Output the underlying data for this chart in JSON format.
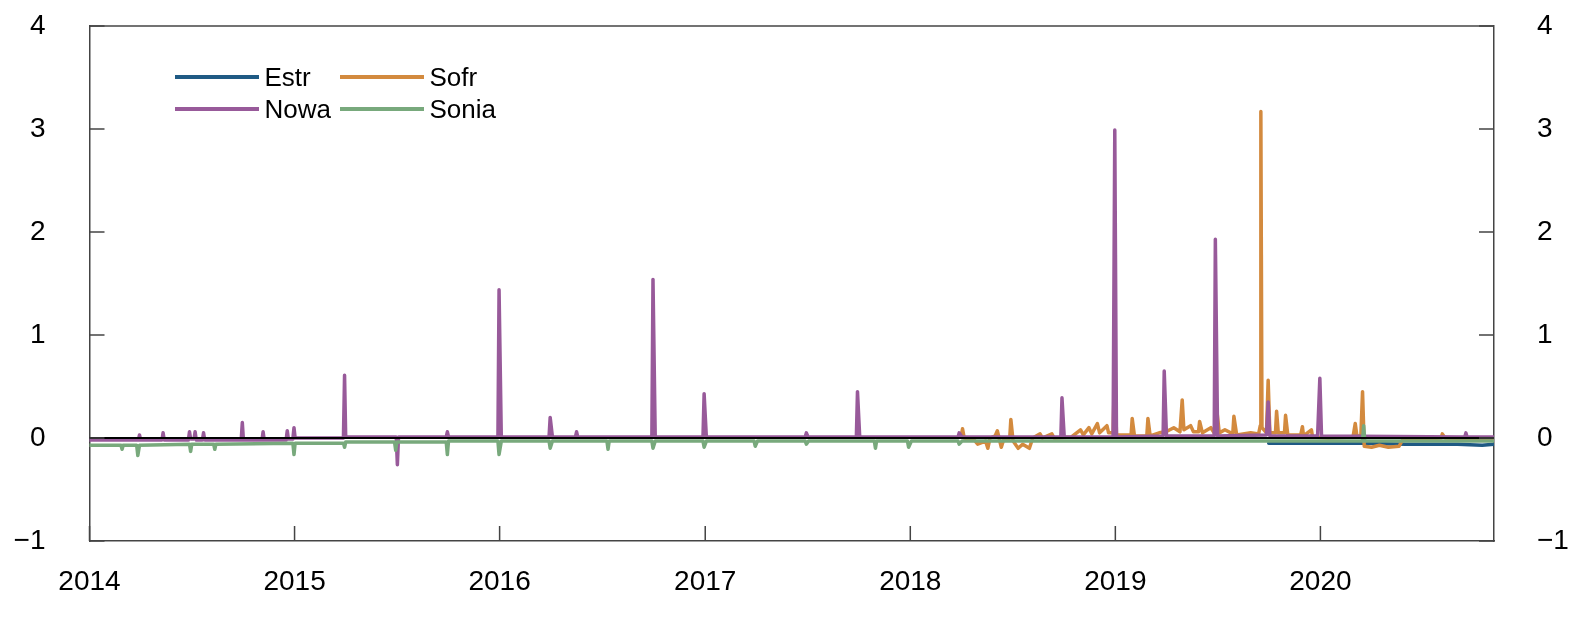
{
  "chart_data": {
    "type": "line",
    "xlim": [
      "2014",
      "2020-11-05"
    ],
    "xticks": [
      "2014",
      "2015",
      "2016",
      "2017",
      "2018",
      "2019",
      "2020"
    ],
    "ylim": [
      -1,
      4
    ],
    "yticks": [
      {
        "value": -1,
        "label": "−1"
      },
      0,
      1,
      2,
      3,
      4
    ],
    "y2lim": [
      -1,
      4
    ],
    "y2ticks": [
      {
        "value": -1,
        "label": "−1"
      },
      0,
      1,
      2,
      3,
      4
    ],
    "legend": "top left",
    "ref_lines": [
      {
        "axis": "y",
        "value": 0,
        "color": "#000000"
      }
    ],
    "series": [
      {
        "name": "Estr",
        "color": "#1f5a84",
        "x": [
          "2019-10-01",
          "2019-12-31",
          "2020-03-18",
          "2020-06-01",
          "2020-09-01",
          "2020-10-15",
          "2020-11-05"
        ],
        "values": [
          -0.05,
          -0.05,
          -0.05,
          -0.06,
          -0.06,
          -0.07,
          -0.06
        ]
      },
      {
        "name": "Sofr",
        "color": "#d38a3e",
        "x": [
          "2018-04-02",
          "2018-04-04",
          "2018-04-07",
          "2018-04-25",
          "2018-05-01",
          "2018-05-15",
          "2018-05-19",
          "2018-05-23",
          "2018-06-01",
          "2018-06-05",
          "2018-06-08",
          "2018-06-12",
          "2018-06-16",
          "2018-06-27",
          "2018-06-29",
          "2018-07-03",
          "2018-07-12",
          "2018-07-20",
          "2018-08-01",
          "2018-08-07",
          "2018-08-20",
          "2018-08-24",
          "2018-09-10",
          "2018-09-14",
          "2018-10-15",
          "2018-10-31",
          "2018-11-05",
          "2018-11-15",
          "2018-11-20",
          "2018-11-30",
          "2018-12-04",
          "2018-12-17",
          "2018-12-20",
          "2018-12-28",
          "2018-12-31",
          "2019-01-03",
          "2019-01-29",
          "2019-01-31",
          "2019-02-04",
          "2019-02-26",
          "2019-02-28",
          "2019-03-04",
          "2019-03-20",
          "2019-04-01",
          "2019-04-15",
          "2019-04-26",
          "2019-04-30",
          "2019-05-03",
          "2019-05-15",
          "2019-05-20",
          "2019-05-29",
          "2019-05-31",
          "2019-06-05",
          "2019-06-20",
          "2019-06-27",
          "2019-07-01",
          "2019-07-05",
          "2019-07-15",
          "2019-07-29",
          "2019-07-31",
          "2019-08-05",
          "2019-08-30",
          "2019-09-13",
          "2019-09-16",
          "2019-09-17",
          "2019-09-19",
          "2019-09-27",
          "2019-09-30",
          "2019-10-03",
          "2019-10-13",
          "2019-10-15",
          "2019-10-18",
          "2019-10-29",
          "2019-10-31",
          "2019-11-04",
          "2019-11-27",
          "2019-11-30",
          "2019-12-02",
          "2019-12-16",
          "2019-12-18",
          "2020-01-15",
          "2020-02-28",
          "2020-03-03",
          "2020-03-06",
          "2020-03-13",
          "2020-03-16",
          "2020-03-19",
          "2020-04-01",
          "2020-04-15",
          "2020-05-01",
          "2020-05-20",
          "2020-05-26",
          "2020-07-01",
          "2020-08-03",
          "2020-08-05",
          "2020-08-10",
          "2020-11-05"
        ],
        "values": [
          0.03,
          0.09,
          0.0,
          -0.02,
          -0.06,
          -0.03,
          -0.1,
          0.0,
          0.02,
          0.07,
          0.0,
          -0.09,
          -0.02,
          0.0,
          0.18,
          -0.03,
          -0.1,
          -0.06,
          -0.1,
          0.0,
          0.04,
          0.0,
          0.04,
          0.0,
          0.01,
          0.08,
          0.03,
          0.1,
          0.04,
          0.14,
          0.05,
          0.12,
          0.05,
          0.05,
          0.76,
          0.03,
          0.03,
          0.19,
          0.02,
          0.02,
          0.19,
          0.02,
          0.05,
          0.06,
          0.1,
          0.06,
          0.37,
          0.08,
          0.12,
          0.06,
          0.06,
          0.16,
          0.05,
          0.1,
          0.04,
          0.25,
          0.05,
          0.08,
          0.04,
          0.21,
          0.03,
          0.05,
          0.04,
          0.12,
          3.17,
          0.1,
          0.05,
          0.56,
          0.05,
          0.05,
          0.26,
          0.05,
          0.05,
          0.22,
          0.03,
          0.03,
          0.11,
          0.02,
          0.08,
          0.01,
          0.0,
          0.01,
          0.14,
          0.02,
          0.02,
          0.45,
          -0.08,
          -0.09,
          -0.07,
          -0.09,
          -0.08,
          -0.02,
          -0.01,
          0.0,
          0.04,
          0.0,
          -0.01
        ]
      },
      {
        "name": "Nowa",
        "color": "#985a9a",
        "x": [
          "2014-01-01",
          "2014-03-29",
          "2014-03-31",
          "2014-04-02",
          "2014-05-10",
          "2014-05-12",
          "2014-05-14",
          "2014-06-26",
          "2014-06-28",
          "2014-06-30",
          "2014-07-06",
          "2014-07-08",
          "2014-07-10",
          "2014-07-21",
          "2014-07-23",
          "2014-07-25",
          "2014-09-28",
          "2014-09-30",
          "2014-10-02",
          "2014-11-04",
          "2014-11-06",
          "2014-11-08",
          "2014-12-17",
          "2014-12-19",
          "2014-12-21",
          "2014-12-29",
          "2014-12-31",
          "2015-01-02",
          "2015-03-29",
          "2015-03-31",
          "2015-04-02",
          "2015-07-01",
          "2015-07-03",
          "2015-07-05",
          "2015-09-28",
          "2015-09-30",
          "2015-10-02",
          "2015-12-29",
          "2015-12-31",
          "2016-01-04",
          "2016-03-29",
          "2016-03-31",
          "2016-04-04",
          "2016-05-15",
          "2016-05-17",
          "2016-05-19",
          "2016-09-28",
          "2016-09-30",
          "2016-10-04",
          "2016-12-28",
          "2016-12-30",
          "2017-01-03",
          "2017-06-28",
          "2017-06-30",
          "2017-07-03",
          "2017-09-27",
          "2017-09-29",
          "2017-10-03",
          "2018-03-27",
          "2018-03-29",
          "2018-04-03",
          "2018-09-26",
          "2018-09-28",
          "2018-10-02",
          "2018-12-28",
          "2018-12-31",
          "2019-01-03",
          "2019-03-27",
          "2019-03-29",
          "2019-04-02",
          "2019-06-26",
          "2019-06-28",
          "2019-07-02",
          "2019-09-27",
          "2019-09-30",
          "2019-10-03",
          "2019-12-27",
          "2019-12-31",
          "2020-01-03",
          "2020-09-14",
          "2020-09-16",
          "2020-09-18",
          "2020-11-05"
        ],
        "values": [
          -0.02,
          -0.02,
          0.03,
          -0.02,
          -0.02,
          0.05,
          -0.02,
          -0.02,
          0.06,
          -0.01,
          -0.01,
          0.06,
          -0.02,
          -0.02,
          0.05,
          -0.02,
          -0.02,
          0.15,
          -0.02,
          -0.02,
          0.06,
          -0.02,
          -0.02,
          0.07,
          -0.01,
          -0.01,
          0.1,
          0.0,
          0.0,
          0.61,
          0.01,
          0.01,
          -0.26,
          0.01,
          0.01,
          0.06,
          0.01,
          0.01,
          1.44,
          0.01,
          0.01,
          0.2,
          0.01,
          0.01,
          0.06,
          0.01,
          0.01,
          1.54,
          0.01,
          0.01,
          0.43,
          0.01,
          0.01,
          0.05,
          0.01,
          0.01,
          0.45,
          0.01,
          0.01,
          0.05,
          0.01,
          0.01,
          0.39,
          0.01,
          0.01,
          2.99,
          0.01,
          0.02,
          0.65,
          0.02,
          0.02,
          1.93,
          0.02,
          0.03,
          0.35,
          0.02,
          0.02,
          0.58,
          0.02,
          0.01,
          0.05,
          0.01,
          0.01
        ]
      },
      {
        "name": "Sonia",
        "color": "#78a97c",
        "x": [
          "2014-01-01",
          "2014-02-26",
          "2014-02-28",
          "2014-03-02",
          "2014-03-26",
          "2014-03-28",
          "2014-03-31",
          "2014-06-28",
          "2014-06-30",
          "2014-07-02",
          "2014-08-10",
          "2014-08-12",
          "2014-08-14",
          "2014-12-29",
          "2014-12-31",
          "2015-01-02",
          "2015-03-29",
          "2015-03-31",
          "2015-04-02",
          "2015-06-28",
          "2015-06-30",
          "2015-07-02",
          "2015-09-28",
          "2015-09-30",
          "2015-10-02",
          "2015-12-29",
          "2015-12-31",
          "2016-01-04",
          "2016-03-29",
          "2016-03-31",
          "2016-04-04",
          "2016-07-10",
          "2016-07-12",
          "2016-07-14",
          "2016-09-28",
          "2016-09-30",
          "2016-10-04",
          "2016-12-28",
          "2016-12-30",
          "2017-01-03",
          "2017-03-29",
          "2017-03-31",
          "2017-04-04",
          "2017-06-28",
          "2017-06-30",
          "2017-07-04",
          "2017-10-29",
          "2017-10-31",
          "2017-11-02",
          "2017-12-27",
          "2017-12-29",
          "2018-01-03",
          "2018-03-27",
          "2018-03-29",
          "2018-04-03",
          "2020-03-16",
          "2020-03-18",
          "2020-03-20",
          "2020-11-05"
        ],
        "values": [
          -0.07,
          -0.07,
          -0.11,
          -0.07,
          -0.07,
          -0.17,
          -0.07,
          -0.06,
          -0.13,
          -0.06,
          -0.06,
          -0.11,
          -0.06,
          -0.05,
          -0.16,
          -0.05,
          -0.05,
          -0.09,
          -0.04,
          -0.04,
          -0.12,
          -0.04,
          -0.04,
          -0.16,
          -0.03,
          -0.03,
          -0.16,
          -0.03,
          -0.03,
          -0.1,
          -0.03,
          -0.03,
          -0.11,
          -0.03,
          -0.03,
          -0.1,
          -0.03,
          -0.03,
          -0.09,
          -0.03,
          -0.03,
          -0.08,
          -0.03,
          -0.03,
          -0.06,
          -0.03,
          -0.03,
          -0.1,
          -0.03,
          -0.03,
          -0.09,
          -0.03,
          -0.03,
          -0.06,
          -0.03,
          -0.03,
          0.12,
          -0.03,
          -0.03
        ]
      }
    ]
  }
}
